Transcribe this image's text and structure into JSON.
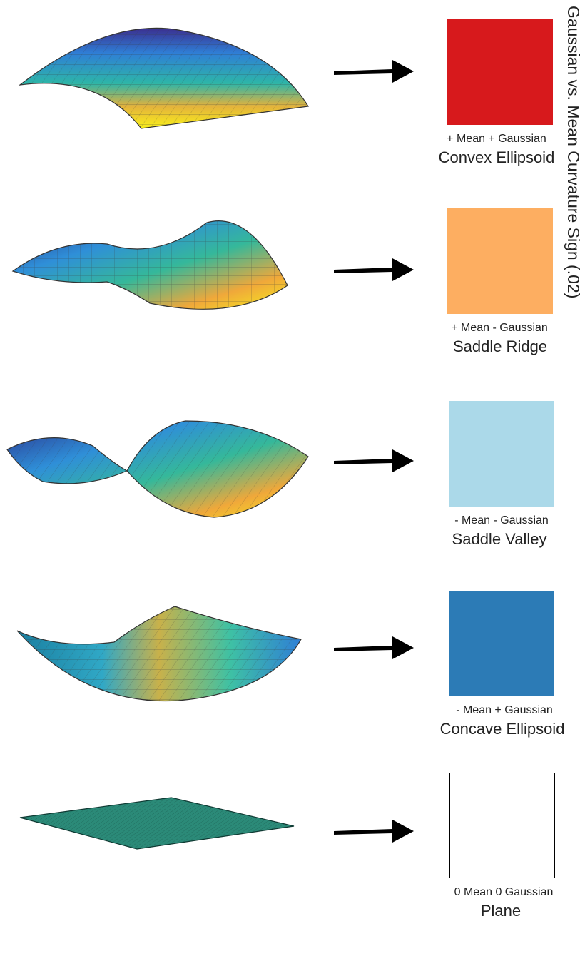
{
  "title": "Gaussian vs. Mean Curvature Sign (.02)",
  "rows": [
    {
      "surface": "convex-ellipsoid-surface",
      "sublabel": "+ Mean + Gaussian",
      "label": "Convex Ellipsoid",
      "color": "#d7191c"
    },
    {
      "surface": "saddle-ridge-surface",
      "sublabel": "+ Mean - Gaussian",
      "label": "Saddle Ridge",
      "color": "#fdae61"
    },
    {
      "surface": "saddle-valley-surface",
      "sublabel": "- Mean - Gaussian",
      "label": "Saddle Valley",
      "color": "#abd9e9"
    },
    {
      "surface": "concave-ellipsoid-surface",
      "sublabel": "- Mean + Gaussian",
      "label": "Concave Ellipsoid",
      "color": "#2c7bb6"
    },
    {
      "surface": "plane-surface",
      "sublabel": "0 Mean 0 Gaussian",
      "label": "Plane",
      "color": "#ffffff"
    }
  ]
}
